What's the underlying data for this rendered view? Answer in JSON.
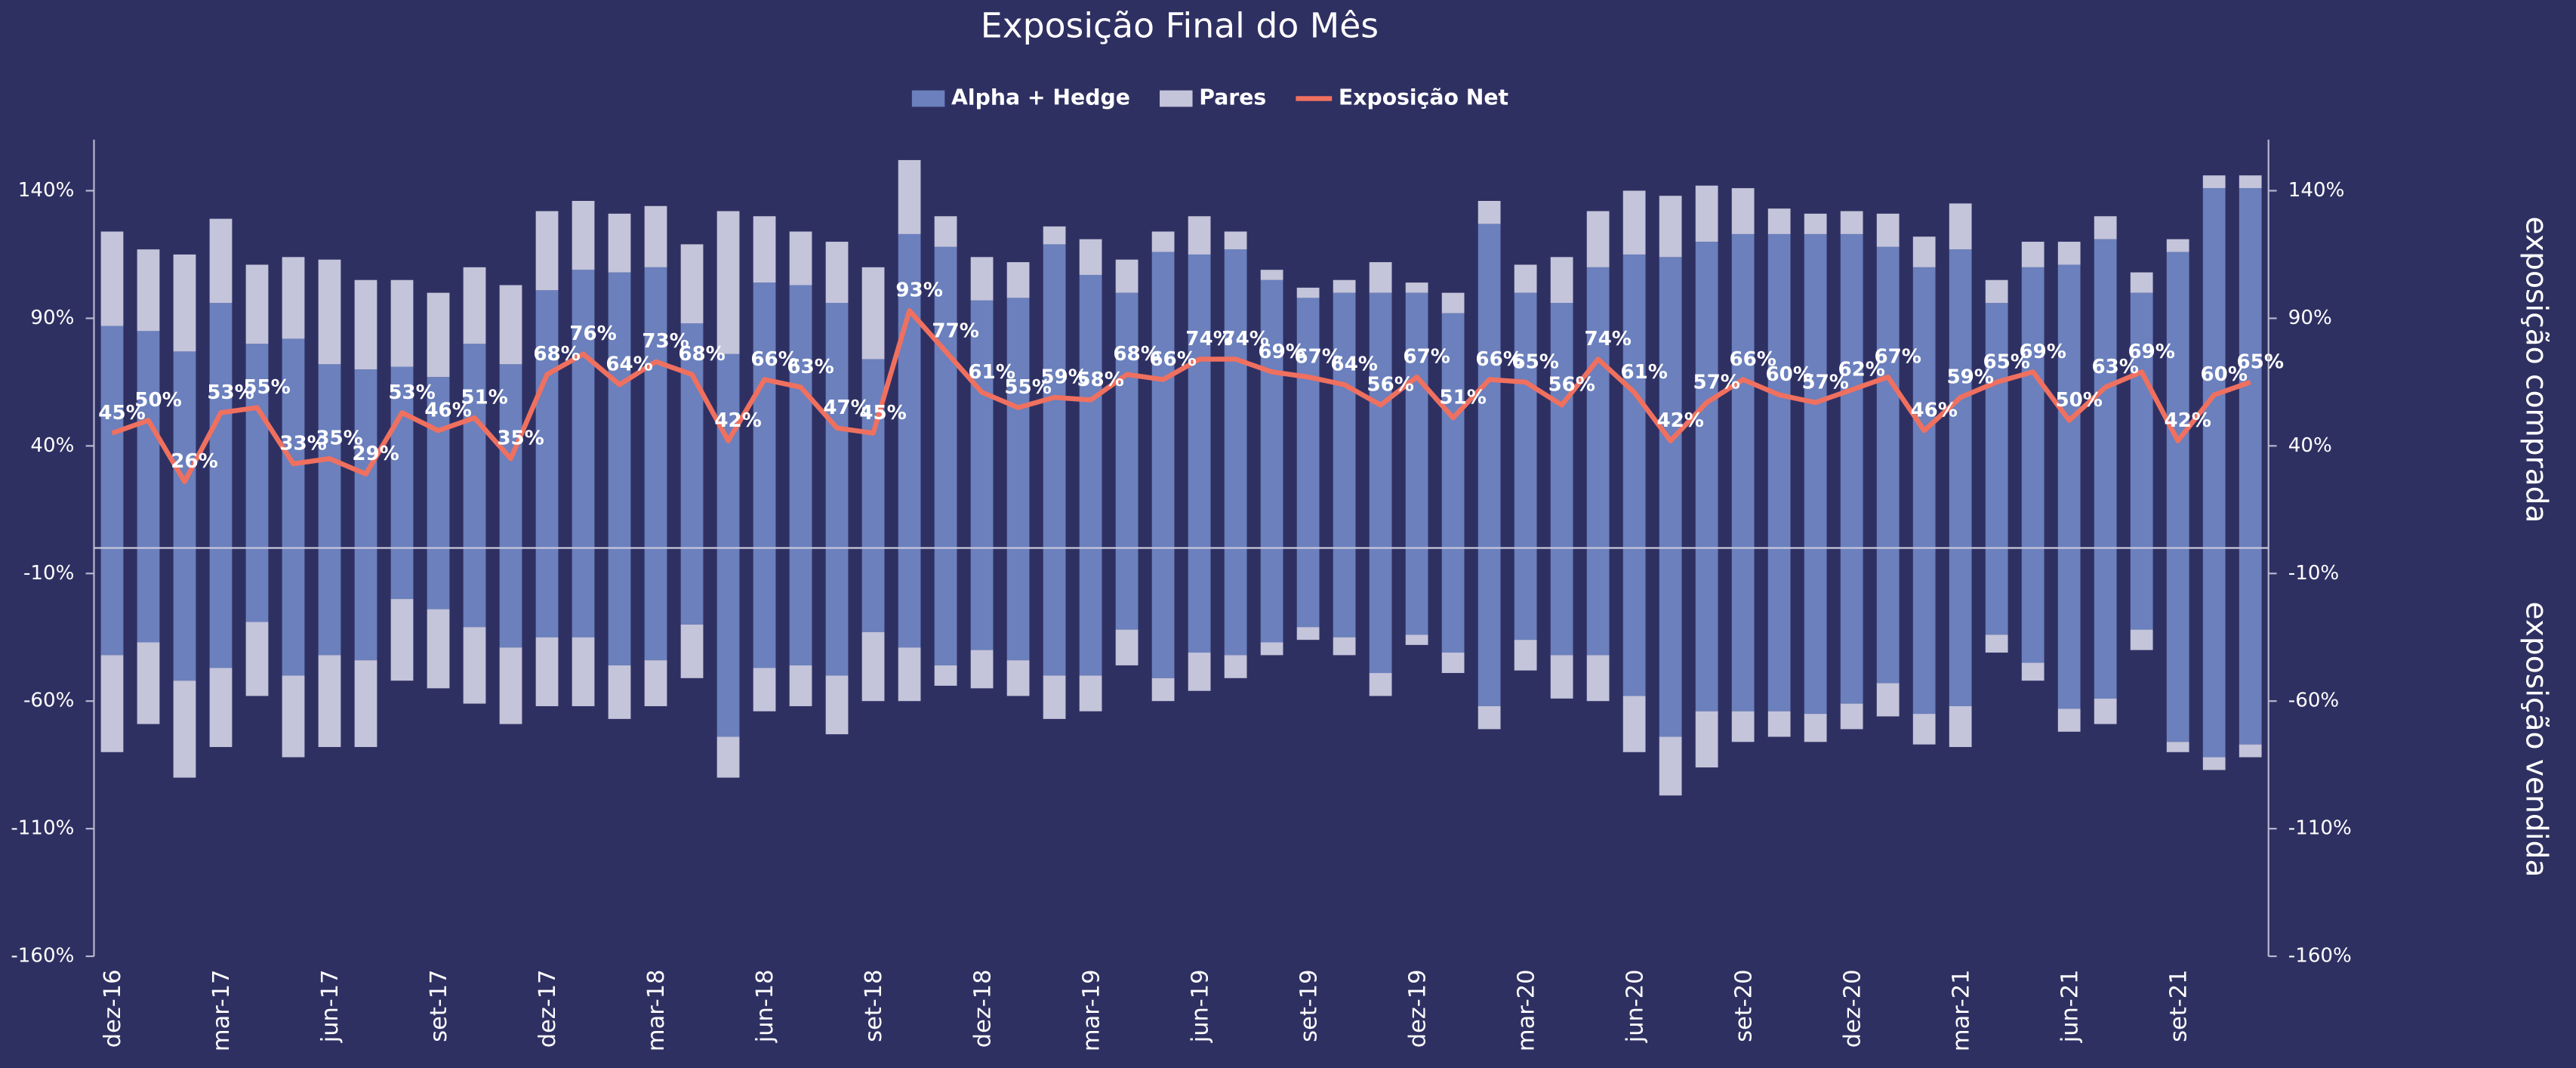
{
  "chart_data": {
    "type": "bar",
    "title": "Exposição Final do Mês",
    "y_label": "exposição comprada",
    "y_label_short": "exposição vendida",
    "categories": [
      "dez-16",
      null,
      null,
      "mar-17",
      null,
      null,
      "jun-17",
      null,
      null,
      "set-17",
      null,
      null,
      "dez-17",
      null,
      null,
      "mar-18",
      null,
      null,
      "jun-18",
      null,
      null,
      "set-18",
      null,
      null,
      "dez-18",
      null,
      null,
      "mar-19",
      null,
      null,
      "jun-19",
      null,
      null,
      "set-19",
      null,
      null,
      "dez-19",
      null,
      null,
      "mar-20",
      null,
      null,
      "jun-20",
      null,
      null,
      "set-20",
      null,
      null,
      "dez-20",
      null,
      null,
      "mar-21",
      null,
      null,
      "jun-21",
      null,
      null,
      "set-21",
      null,
      null
    ],
    "series": [
      {
        "name": "Alpha + Hedge",
        "color": "#6b80bd",
        "values": [
          87,
          85,
          77,
          96,
          80,
          82,
          72,
          70,
          71,
          67,
          80,
          72,
          101,
          109,
          108,
          110,
          88,
          76,
          104,
          103,
          96,
          74,
          123,
          118,
          97,
          98,
          119,
          107,
          100,
          116,
          115,
          117,
          105,
          98,
          100,
          100,
          100,
          92,
          127,
          100,
          96,
          110,
          115,
          114,
          120,
          123,
          123,
          123,
          123,
          118,
          110,
          117,
          96,
          110,
          111,
          121,
          100,
          116,
          141,
          141
        ],
        "short_values": [
          -42,
          -37,
          -52,
          -47,
          -29,
          -50,
          -42,
          -44,
          -20,
          -24,
          -31,
          -39,
          -35,
          -35,
          -46,
          -44,
          -30,
          -74,
          -47,
          -46,
          -50,
          -33,
          -39,
          -46,
          -40,
          -44,
          -50,
          -50,
          -32,
          -51,
          -41,
          -42,
          -37,
          -31,
          -35,
          -49,
          -34,
          -41,
          -62,
          -36,
          -42,
          -42,
          -58,
          -74,
          -64,
          -64,
          -64,
          -65,
          -61,
          -53,
          -65,
          -62,
          -34,
          -45,
          -63,
          -59,
          -32,
          -76,
          -82,
          -77
        ]
      },
      {
        "name": "Pares",
        "color": "#c4c4da",
        "values": [
          37,
          32,
          38,
          33,
          31,
          32,
          41,
          35,
          34,
          33,
          30,
          31,
          31,
          27,
          23,
          24,
          31,
          56,
          26,
          21,
          24,
          36,
          29,
          12,
          17,
          14,
          7,
          14,
          13,
          8,
          15,
          7,
          4,
          4,
          5,
          12,
          4,
          8,
          9,
          11,
          18,
          22,
          25,
          24,
          22,
          18,
          10,
          8,
          9,
          13,
          12,
          18,
          9,
          10,
          9,
          9,
          8,
          5,
          5,
          5
        ],
        "short_values": [
          -38,
          -32,
          -38,
          -31,
          -29,
          -32,
          -36,
          -34,
          -32,
          -31,
          -30,
          -30,
          -27,
          -27,
          -21,
          -18,
          -21,
          -16,
          -17,
          -16,
          -23,
          -27,
          -21,
          -8,
          -15,
          -14,
          -17,
          -14,
          -14,
          -9,
          -15,
          -9,
          -5,
          -5,
          -7,
          -9,
          -4,
          -8,
          -9,
          -12,
          -17,
          -18,
          -22,
          -23,
          -22,
          -12,
          -10,
          -11,
          -10,
          -13,
          -12,
          -16,
          -7,
          -7,
          -9,
          -10,
          -8,
          -4,
          -5,
          -5
        ]
      },
      {
        "name": "Exposição Net",
        "color": "#f0705f",
        "type": "line",
        "values": [
          45,
          50,
          26,
          53,
          55,
          33,
          35,
          29,
          53,
          46,
          51,
          35,
          68,
          76,
          64,
          73,
          68,
          42,
          66,
          63,
          47,
          45,
          93,
          77,
          61,
          55,
          59,
          58,
          68,
          66,
          74,
          74,
          69,
          67,
          64,
          56,
          67,
          51,
          66,
          65,
          56,
          74,
          61,
          42,
          57,
          66,
          60,
          57,
          62,
          67,
          46,
          59,
          65,
          69,
          50,
          63,
          69,
          42,
          60,
          65
        ],
        "value_labels": [
          "45%",
          "50%",
          "26%",
          "53%",
          "55%",
          "33%",
          "35%",
          "29%",
          "53%",
          "46%",
          "51%",
          "35%",
          "68%",
          "76%",
          "64%",
          "73%",
          "68%",
          "42%",
          "66%",
          "63%",
          "47%",
          "45%",
          "93%",
          "77%",
          "61%",
          "55%",
          "59%",
          "58%",
          "68%",
          "66%",
          "74%",
          "74%",
          "69%",
          "67%",
          "64%",
          "56%",
          "67%",
          "51%",
          "66%",
          "65%",
          "56%",
          "74%",
          "61%",
          "42%",
          "57%",
          "66%",
          "60%",
          "57%",
          "62%",
          "67%",
          "46%",
          "59%",
          "65%",
          "69%",
          "50%",
          "63%",
          "69%",
          "42%",
          "60%",
          "65%"
        ]
      }
    ],
    "ylim": [
      -160,
      160
    ],
    "yticks": [
      {
        "value": 140,
        "label": "140%"
      },
      {
        "value": 90,
        "label": "90%"
      },
      {
        "value": 40,
        "label": "40%"
      },
      {
        "value": -10,
        "label": "-10%"
      },
      {
        "value": -60,
        "label": "-60%"
      },
      {
        "value": -110,
        "label": "-110%"
      },
      {
        "value": -160,
        "label": "-160%"
      }
    ],
    "y2lim": [
      -160,
      160
    ],
    "y2ticks": [
      {
        "value": 140,
        "label": "140%"
      },
      {
        "value": 90,
        "label": "90%"
      },
      {
        "value": 40,
        "label": "40%"
      },
      {
        "value": -10,
        "label": "-10%"
      },
      {
        "value": -60,
        "label": "-60%"
      },
      {
        "value": -110,
        "label": "-110%"
      },
      {
        "value": -160,
        "label": "-160%"
      }
    ],
    "legend": "top"
  }
}
